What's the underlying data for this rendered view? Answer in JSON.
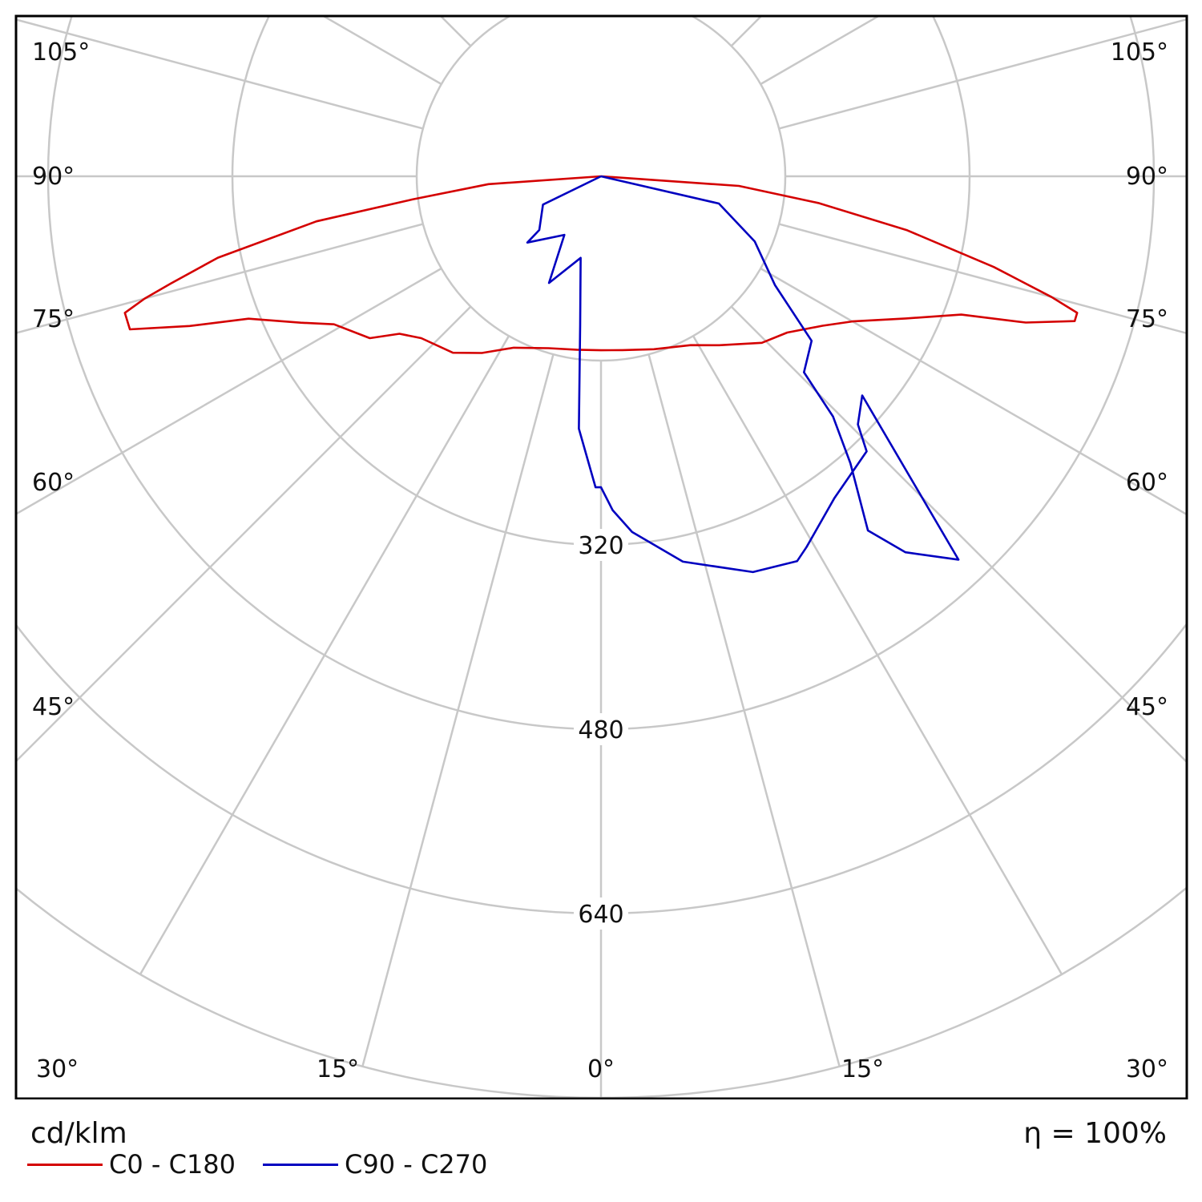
{
  "chart_data": {
    "type": "polar",
    "unit": "cd/klm",
    "efficiency": "η = 100%",
    "angle_labels": [
      "105°",
      "90°",
      "75°",
      "60°",
      "45°",
      "30°",
      "15°",
      "0°",
      "15°",
      "30°",
      "45°",
      "60°",
      "75°",
      "90°",
      "105°"
    ],
    "radial_ticks": [
      160,
      320,
      480,
      640
    ],
    "radial_tick_labels": [
      "320",
      "480",
      "640"
    ],
    "rmax": 800,
    "series": [
      {
        "name": "C0 - C180",
        "color": "#d40000",
        "points": [
          {
            "gamma": -90,
            "I": 0
          },
          {
            "gamma": -86,
            "I": 98
          },
          {
            "gamma": -83,
            "I": 165
          },
          {
            "gamma": -81,
            "I": 250
          },
          {
            "gamma": -78,
            "I": 340
          },
          {
            "gamma": -76,
            "I": 385
          },
          {
            "gamma": -75,
            "I": 410
          },
          {
            "gamma": -74,
            "I": 430
          },
          {
            "gamma": -72,
            "I": 430
          },
          {
            "gamma": -70,
            "I": 380
          },
          {
            "gamma": -68,
            "I": 330
          },
          {
            "gamma": -64,
            "I": 290
          },
          {
            "gamma": -61,
            "I": 265
          },
          {
            "gamma": -55,
            "I": 245
          },
          {
            "gamma": -52,
            "I": 222
          },
          {
            "gamma": -48,
            "I": 210
          },
          {
            "gamma": -40,
            "I": 200
          },
          {
            "gamma": -34,
            "I": 185
          },
          {
            "gamma": -27,
            "I": 167
          },
          {
            "gamma": -17,
            "I": 156
          },
          {
            "gamma": -8,
            "I": 152
          },
          {
            "gamma": 0,
            "I": 151
          },
          {
            "gamma": 7,
            "I": 152
          },
          {
            "gamma": 17,
            "I": 157
          },
          {
            "gamma": 28,
            "I": 166
          },
          {
            "gamma": 35,
            "I": 179
          },
          {
            "gamma": 44,
            "I": 201
          },
          {
            "gamma": 50,
            "I": 211
          },
          {
            "gamma": 56,
            "I": 232
          },
          {
            "gamma": 60,
            "I": 252
          },
          {
            "gamma": 65,
            "I": 292
          },
          {
            "gamma": 69,
            "I": 335
          },
          {
            "gamma": 71,
            "I": 390
          },
          {
            "gamma": 73,
            "I": 430
          },
          {
            "gamma": 74,
            "I": 430
          },
          {
            "gamma": 75,
            "I": 405
          },
          {
            "gamma": 77,
            "I": 350
          },
          {
            "gamma": 80,
            "I": 270
          },
          {
            "gamma": 83,
            "I": 190
          },
          {
            "gamma": 86,
            "I": 120
          },
          {
            "gamma": 90,
            "I": 0
          }
        ]
      },
      {
        "name": "C90 - C270",
        "color": "#0000c0",
        "points": [
          {
            "gamma": -90,
            "I": 0
          },
          {
            "gamma": -64,
            "I": 56
          },
          {
            "gamma": -49,
            "I": 71
          },
          {
            "gamma": -48,
            "I": 86
          },
          {
            "gamma": -32,
            "I": 60
          },
          {
            "gamma": -26,
            "I": 103
          },
          {
            "gamma": -14,
            "I": 73
          },
          {
            "gamma": -8,
            "I": 130
          },
          {
            "gamma": -5,
            "I": 220
          },
          {
            "gamma": -1,
            "I": 270
          },
          {
            "gamma": 0,
            "I": 270
          },
          {
            "gamma": 2,
            "I": 290
          },
          {
            "gamma": 5,
            "I": 310
          },
          {
            "gamma": 12,
            "I": 342
          },
          {
            "gamma": 21,
            "I": 368
          },
          {
            "gamma": 27,
            "I": 375
          },
          {
            "gamma": 29,
            "I": 368
          },
          {
            "gamma": 36,
            "I": 345
          },
          {
            "gamma": 44,
            "I": 332
          },
          {
            "gamma": 46,
            "I": 310
          },
          {
            "gamma": 50,
            "I": 296
          },
          {
            "gamma": 43,
            "I": 455
          },
          {
            "gamma": 39,
            "I": 420
          },
          {
            "gamma": 37,
            "I": 385
          },
          {
            "gamma": 41,
            "I": 330
          },
          {
            "gamma": 44,
            "I": 290
          },
          {
            "gamma": 46,
            "I": 245
          },
          {
            "gamma": 52,
            "I": 232
          },
          {
            "gamma": 58,
            "I": 178
          },
          {
            "gamma": 67,
            "I": 145
          },
          {
            "gamma": 77,
            "I": 105
          },
          {
            "gamma": 90,
            "I": 0
          }
        ]
      }
    ]
  }
}
